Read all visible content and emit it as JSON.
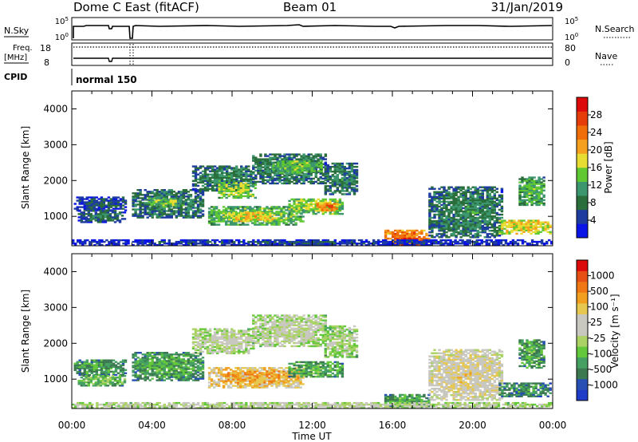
{
  "header": {
    "station": "Dome C East (fitACF)",
    "beam": "Beam 01",
    "date": "31/Jan/2019"
  },
  "noise_panel": {
    "left_label": "N.Sky",
    "left_top": "10^5",
    "left_bottom": "10^0",
    "right_label": "N.Search",
    "right_top": "10^5",
    "right_bottom": "10^0"
  },
  "freq_panel": {
    "left_label_line1": "Freq.",
    "left_label_line2": "[MHz]",
    "left_top": "18",
    "left_bottom": "8",
    "right_label": "Nave",
    "right_top": "80",
    "right_bottom": "0"
  },
  "cpid_panel": {
    "label": "CPID",
    "value": "normal 150"
  },
  "x_axis": {
    "label": "Time UT",
    "ticks": [
      "00:00",
      "04:00",
      "08:00",
      "12:00",
      "16:00",
      "20:00",
      "00:00"
    ]
  },
  "chart_data": [
    {
      "type": "heatmap",
      "name": "power-panel",
      "ylabel": "Slant Range [km]",
      "yticks": [
        "1000",
        "2000",
        "3000",
        "4000"
      ],
      "ylim": [
        180,
        4500
      ],
      "xlim_hours": [
        0,
        24
      ],
      "colorbar_label": "Power [dB]",
      "colorbar_ticks": [
        "4",
        "8",
        "12",
        "16",
        "20",
        "24",
        "28"
      ],
      "colorbar_colors": [
        "#0a14e6",
        "#1e3ca0",
        "#2a6e3c",
        "#3c966e",
        "#5fc832",
        "#e6dc32",
        "#f5a01e",
        "#f06e0a",
        "#e63c0a",
        "#dc0a0a"
      ],
      "regions": [
        {
          "t0": 0.1,
          "t1": 2.7,
          "r0": 1150,
          "r1": 1550,
          "level": 0.2
        },
        {
          "t0": 0.3,
          "t1": 2.6,
          "r0": 820,
          "r1": 1150,
          "level": 0.25
        },
        {
          "t0": 3.0,
          "t1": 6.5,
          "r0": 950,
          "r1": 1750,
          "level": 0.3
        },
        {
          "t0": 3.8,
          "t1": 5.5,
          "r0": 1250,
          "r1": 1500,
          "level": 0.45
        },
        {
          "t0": 6.0,
          "t1": 9.0,
          "r0": 1700,
          "r1": 2400,
          "level": 0.3
        },
        {
          "t0": 7.3,
          "t1": 9.2,
          "r0": 1500,
          "r1": 1950,
          "level": 0.5
        },
        {
          "t0": 9.0,
          "t1": 12.7,
          "r0": 1900,
          "r1": 2750,
          "level": 0.3
        },
        {
          "t0": 10.0,
          "t1": 12.5,
          "r0": 2200,
          "r1": 2550,
          "level": 0.45
        },
        {
          "t0": 6.8,
          "t1": 11.5,
          "r0": 750,
          "r1": 1250,
          "level": 0.45
        },
        {
          "t0": 7.8,
          "t1": 10.0,
          "r0": 850,
          "r1": 1100,
          "level": 0.6
        },
        {
          "t0": 10.8,
          "t1": 13.5,
          "r0": 1050,
          "r1": 1500,
          "level": 0.5
        },
        {
          "t0": 12.2,
          "t1": 13.2,
          "r0": 1150,
          "r1": 1350,
          "level": 0.75
        },
        {
          "t0": 12.6,
          "t1": 14.2,
          "r0": 1600,
          "r1": 2500,
          "level": 0.3
        },
        {
          "t0": 15.6,
          "t1": 17.8,
          "r0": 180,
          "r1": 600,
          "level": 0.75
        },
        {
          "t0": 16.2,
          "t1": 17.3,
          "r0": 180,
          "r1": 400,
          "level": 0.95
        },
        {
          "t0": 17.8,
          "t1": 21.5,
          "r0": 400,
          "r1": 1800,
          "level": 0.3
        },
        {
          "t0": 21.3,
          "t1": 23.9,
          "r0": 500,
          "r1": 900,
          "level": 0.6
        },
        {
          "t0": 22.3,
          "t1": 23.6,
          "r0": 1300,
          "r1": 2100,
          "level": 0.4
        },
        {
          "t0": 0.0,
          "t1": 24.0,
          "r0": 180,
          "r1": 320,
          "level": 0.15
        }
      ]
    },
    {
      "type": "heatmap",
      "name": "velocity-panel",
      "ylabel": "Slant Range [km]",
      "yticks": [
        "1000",
        "2000",
        "3000",
        "4000"
      ],
      "ylim": [
        180,
        4500
      ],
      "xlim_hours": [
        0,
        24
      ],
      "colorbar_label": "Velocity [m s⁻¹]",
      "colorbar_ticks": [
        "1000",
        "500",
        "100",
        "25",
        "-25",
        "-100",
        "-500",
        "-1000"
      ],
      "colorbar_colors": [
        "#1e3cc8",
        "#2850b4",
        "#3c7850",
        "#46a064",
        "#64c83c",
        "#aad264",
        "#c8c8c0",
        "#c8c8c0",
        "#e6c850",
        "#f0a01e",
        "#f07814",
        "#e65014",
        "#dc0a0a"
      ],
      "regions": [
        {
          "t0": 0.1,
          "t1": 2.7,
          "r0": 1100,
          "r1": 1550,
          "level": 0.28
        },
        {
          "t0": 0.3,
          "t1": 2.6,
          "r0": 800,
          "r1": 1100,
          "level": 0.35
        },
        {
          "t0": 3.0,
          "t1": 6.5,
          "r0": 950,
          "r1": 1750,
          "level": 0.3
        },
        {
          "t0": 6.0,
          "t1": 9.0,
          "r0": 1700,
          "r1": 2400,
          "level": 0.5
        },
        {
          "t0": 9.0,
          "t1": 12.7,
          "r0": 1900,
          "r1": 2800,
          "level": 0.5
        },
        {
          "t0": 6.8,
          "t1": 11.5,
          "r0": 750,
          "r1": 1300,
          "level": 0.72
        },
        {
          "t0": 10.8,
          "t1": 13.5,
          "r0": 1050,
          "r1": 1500,
          "level": 0.32
        },
        {
          "t0": 12.6,
          "t1": 14.2,
          "r0": 1600,
          "r1": 2500,
          "level": 0.45
        },
        {
          "t0": 15.6,
          "t1": 17.8,
          "r0": 180,
          "r1": 550,
          "level": 0.3
        },
        {
          "t0": 17.8,
          "t1": 21.5,
          "r0": 400,
          "r1": 1800,
          "level": 0.6
        },
        {
          "t0": 21.3,
          "t1": 23.9,
          "r0": 500,
          "r1": 900,
          "level": 0.25
        },
        {
          "t0": 22.3,
          "t1": 23.6,
          "r0": 1300,
          "r1": 2100,
          "level": 0.3
        },
        {
          "t0": 0.0,
          "t1": 24.0,
          "r0": 180,
          "r1": 320,
          "level": 0.5
        }
      ]
    }
  ]
}
